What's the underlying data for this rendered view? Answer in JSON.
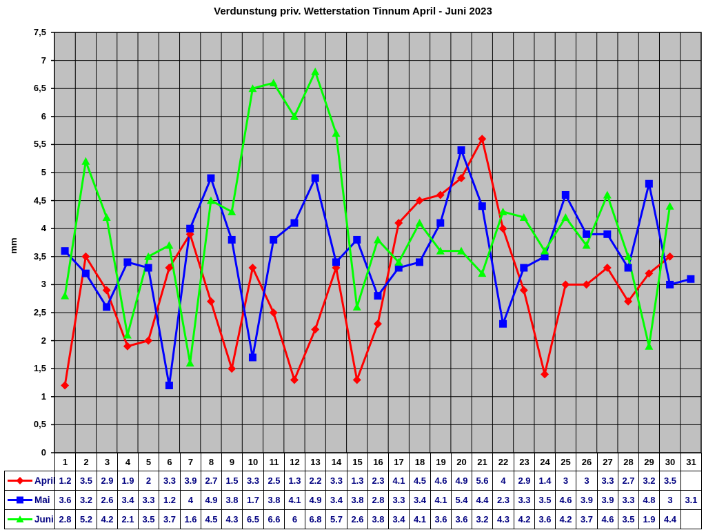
{
  "chart_data": {
    "type": "line",
    "title": "Verdunstung priv. Wetterstation Tinnum April - Juni 2023",
    "ylabel": "mm",
    "xlabel": "",
    "ylim": [
      0,
      7.5
    ],
    "ytick_step": 0.5,
    "ytick_labels": [
      "0",
      "0,5",
      "1",
      "1,5",
      "2",
      "2,5",
      "3",
      "3,5",
      "4",
      "4,5",
      "5",
      "5,5",
      "6",
      "6,5",
      "7",
      "7,5"
    ],
    "grid": true,
    "legend_position": "data-table-left",
    "plot_bg_color": "#c0c0c0",
    "grid_color": "#000000",
    "table_value_color": "#000080",
    "day_label_color": "#000000",
    "categories": [
      1,
      2,
      3,
      4,
      5,
      6,
      7,
      8,
      9,
      10,
      11,
      12,
      13,
      14,
      15,
      16,
      17,
      18,
      19,
      20,
      21,
      22,
      23,
      24,
      25,
      26,
      27,
      28,
      29,
      30,
      31
    ],
    "series": [
      {
        "name": "April",
        "color": "#ff0000",
        "marker": "diamond",
        "values": [
          1.2,
          3.5,
          2.9,
          1.9,
          2,
          3.3,
          3.9,
          2.7,
          1.5,
          3.3,
          2.5,
          1.3,
          2.2,
          3.3,
          1.3,
          2.3,
          4.1,
          4.5,
          4.6,
          4.9,
          5.6,
          4,
          2.9,
          1.4,
          3,
          3,
          3.3,
          2.7,
          3.2,
          3.5,
          null
        ]
      },
      {
        "name": "Mai",
        "color": "#0000ff",
        "marker": "square",
        "values": [
          3.6,
          3.2,
          2.6,
          3.4,
          3.3,
          1.2,
          4,
          4.9,
          3.8,
          1.7,
          3.8,
          4.1,
          4.9,
          3.4,
          3.8,
          2.8,
          3.3,
          3.4,
          4.1,
          5.4,
          4.4,
          2.3,
          3.3,
          3.5,
          4.6,
          3.9,
          3.9,
          3.3,
          4.8,
          3,
          3.1
        ]
      },
      {
        "name": "Juni",
        "color": "#00ff00",
        "marker": "triangle",
        "values": [
          2.8,
          5.2,
          4.2,
          2.1,
          3.5,
          3.7,
          1.6,
          4.5,
          4.3,
          6.5,
          6.6,
          6,
          6.8,
          5.7,
          2.6,
          3.8,
          3.4,
          4.1,
          3.6,
          3.6,
          3.2,
          4.3,
          4.2,
          3.6,
          4.2,
          3.7,
          4.6,
          3.5,
          1.9,
          4.4,
          null
        ]
      }
    ]
  }
}
